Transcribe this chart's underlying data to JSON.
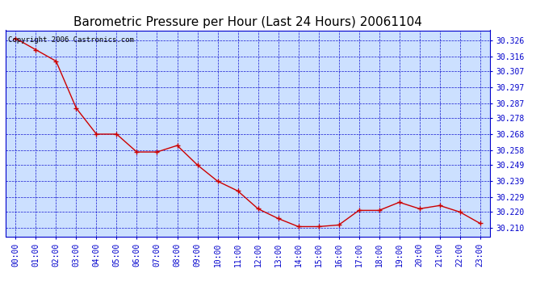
{
  "title": "Barometric Pressure per Hour (Last 24 Hours) 20061104",
  "copyright": "Copyright 2006 Castronics.com",
  "line_color": "#cc0000",
  "marker_color": "#cc0000",
  "bg_color": "#ffffff",
  "plot_bg_color": "#cce0ff",
  "grid_color": "#0000cc",
  "axis_label_color": "#0000cc",
  "title_color": "#000000",
  "hours": [
    "00:00",
    "01:00",
    "02:00",
    "03:00",
    "04:00",
    "05:00",
    "06:00",
    "07:00",
    "08:00",
    "09:00",
    "10:00",
    "11:00",
    "12:00",
    "13:00",
    "14:00",
    "15:00",
    "16:00",
    "17:00",
    "18:00",
    "19:00",
    "20:00",
    "21:00",
    "22:00",
    "23:00"
  ],
  "values": [
    30.327,
    30.32,
    30.313,
    30.284,
    30.268,
    30.268,
    30.257,
    30.257,
    30.261,
    30.249,
    30.239,
    30.233,
    30.222,
    30.216,
    30.211,
    30.211,
    30.212,
    30.221,
    30.221,
    30.226,
    30.222,
    30.224,
    30.22,
    30.213
  ],
  "ylim_min": 30.205,
  "ylim_max": 30.332,
  "yticks": [
    30.21,
    30.22,
    30.229,
    30.239,
    30.249,
    30.258,
    30.268,
    30.278,
    30.287,
    30.297,
    30.307,
    30.316,
    30.326
  ],
  "title_fontsize": 11,
  "copyright_fontsize": 6.5,
  "tick_fontsize": 7
}
